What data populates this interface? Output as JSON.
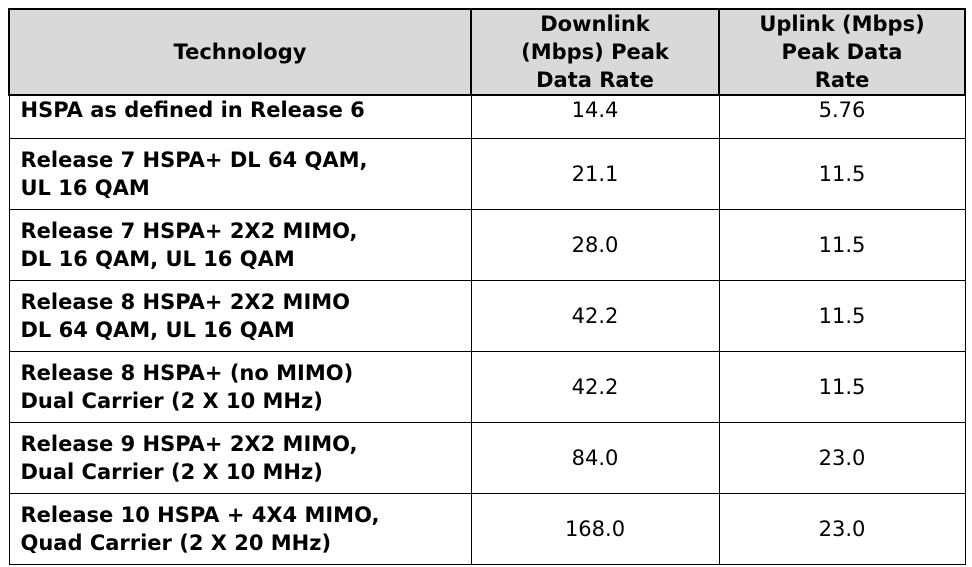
{
  "table": {
    "headers": {
      "technology": [
        "Technology"
      ],
      "downlink": [
        "Downlink",
        "(Mbps) Peak",
        "Data Rate"
      ],
      "uplink": [
        "Uplink (Mbps)",
        "Peak Data",
        "Rate"
      ]
    },
    "rows": [
      {
        "tech": [
          "HSPA as defined in Release 6"
        ],
        "downlink": "14.4",
        "uplink": "5.76"
      },
      {
        "tech": [
          "Release 7 HSPA+ DL 64 QAM,",
          "UL 16 QAM"
        ],
        "downlink": "21.1",
        "uplink": "11.5"
      },
      {
        "tech": [
          "Release 7 HSPA+ 2X2 MIMO,",
          "DL 16 QAM, UL 16 QAM"
        ],
        "downlink": "28.0",
        "uplink": "11.5"
      },
      {
        "tech": [
          "Release 8 HSPA+ 2X2 MIMO",
          "DL 64 QAM, UL 16 QAM"
        ],
        "downlink": "42.2",
        "uplink": "11.5"
      },
      {
        "tech": [
          "Release 8 HSPA+ (no MIMO)",
          "Dual Carrier (2 X 10 MHz)"
        ],
        "downlink": "42.2",
        "uplink": "11.5"
      },
      {
        "tech": [
          "Release 9 HSPA+ 2X2 MIMO,",
          "Dual Carrier (2 X 10 MHz)"
        ],
        "downlink": "84.0",
        "uplink": "23.0"
      },
      {
        "tech": [
          "Release 10 HSPA + 4X4 MIMO,",
          "Quad Carrier (2 X 20 MHz)"
        ],
        "downlink": "168.0",
        "uplink": "23.0"
      }
    ]
  }
}
